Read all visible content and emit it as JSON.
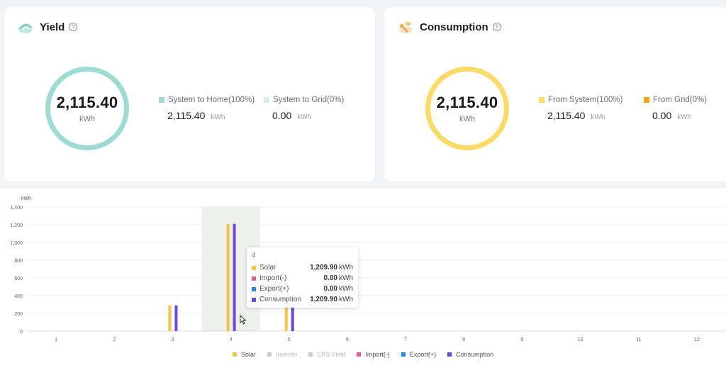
{
  "yield_card": {
    "title": "Yield",
    "total_value": "2,115.40",
    "total_unit": "kWh",
    "ring_color": "#9ddcd3",
    "stats": [
      {
        "label": "System to Home(100%)",
        "value": "2,115.40",
        "unit": "kWh",
        "color": "#9ddcd3"
      },
      {
        "label": "System to Grid(0%)",
        "value": "0.00",
        "unit": "kWh",
        "color": "#d8ecea"
      }
    ]
  },
  "consumption_card": {
    "title": "Consumption",
    "total_value": "2,115.40",
    "total_unit": "kWh",
    "ring_color": "#fadb66",
    "stats": [
      {
        "label": "From System(100%)",
        "value": "2,115.40",
        "unit": "kWh",
        "color": "#fadb66"
      },
      {
        "label": "From Grid(0%)",
        "value": "0.00",
        "unit": "kWh",
        "color": "#f5a300"
      }
    ]
  },
  "chart_data": {
    "type": "bar",
    "ylabel": "kWh",
    "ylim": [
      0,
      1400
    ],
    "yticks": [
      "0",
      "200",
      "400",
      "600",
      "800",
      "1,000",
      "1,200",
      "1,400"
    ],
    "categories": [
      "1",
      "2",
      "3",
      "4",
      "5",
      "6",
      "7",
      "8",
      "9",
      "10",
      "11",
      "12"
    ],
    "highlighted_category": "4",
    "series": [
      {
        "name": "Solar",
        "color": "#f6c343",
        "values": [
          0,
          0,
          290,
          1209.9,
          300,
          0,
          0,
          0,
          0,
          0,
          0,
          0
        ]
      },
      {
        "name": "Consumption",
        "color": "#6c47e6",
        "values": [
          0,
          0,
          290,
          1209.9,
          300,
          0,
          0,
          0,
          0,
          0,
          0,
          0
        ]
      }
    ],
    "legend": [
      {
        "name": "Solar",
        "color": "#f6c343",
        "active": true
      },
      {
        "name": "Inverter",
        "color": "#cccccc",
        "active": false
      },
      {
        "name": "EPS Yield",
        "color": "#cccccc",
        "active": false
      },
      {
        "name": "Import(-)",
        "color": "#ea5a8a",
        "active": true
      },
      {
        "name": "Export(+)",
        "color": "#2389f0",
        "active": true
      },
      {
        "name": "Consumption",
        "color": "#6c47e6",
        "active": true
      }
    ],
    "legend_position": "bottom-center",
    "grid": true
  },
  "tooltip": {
    "title": "4",
    "rows": [
      {
        "name": "Solar",
        "value": "1,209.90",
        "unit": "kWh",
        "color": "#f6c343"
      },
      {
        "name": "Import(-)",
        "value": "0.00",
        "unit": "kWh",
        "color": "#ea5a8a"
      },
      {
        "name": "Export(+)",
        "value": "0.00",
        "unit": "kWh",
        "color": "#2389f0"
      },
      {
        "name": "Consumption",
        "value": "1,209.90",
        "unit": "kWh",
        "color": "#6c47e6"
      }
    ]
  }
}
